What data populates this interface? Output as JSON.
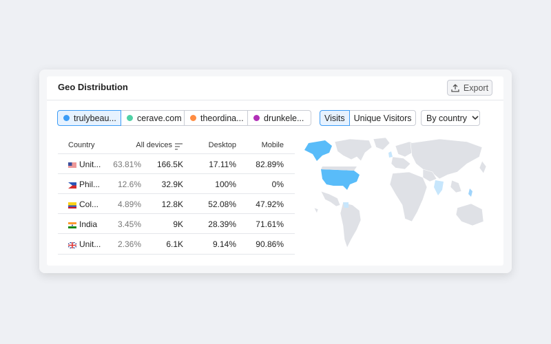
{
  "header": {
    "title": "Geo Distribution",
    "export": "Export"
  },
  "domains": [
    {
      "label": "trulybeau...",
      "color": "#3b9cf6",
      "selected": true
    },
    {
      "label": "cerave.com",
      "color": "#4fd1a5",
      "selected": false
    },
    {
      "label": "theordina...",
      "color": "#ff8c42",
      "selected": false
    },
    {
      "label": "drunkele...",
      "color": "#b12fb7",
      "selected": false
    }
  ],
  "metrics": {
    "options": [
      "Visits",
      "Unique Visitors"
    ],
    "selected": 0
  },
  "grouping": "By country",
  "table": {
    "columns": [
      "Country",
      "All devices",
      "Desktop",
      "Mobile"
    ],
    "rows": [
      [
        "Unit...",
        "63.81%",
        "166.5K",
        "17.11%",
        "82.89%"
      ],
      [
        "Phil...",
        "12.6%",
        "32.9K",
        "100%",
        "0%"
      ],
      [
        "Col...",
        "4.89%",
        "12.8K",
        "52.08%",
        "47.92%"
      ],
      [
        "India",
        "3.45%",
        "9K",
        "28.39%",
        "71.61%"
      ],
      [
        "Unit...",
        "2.36%",
        "6.1K",
        "9.14%",
        "90.86%"
      ]
    ]
  }
}
